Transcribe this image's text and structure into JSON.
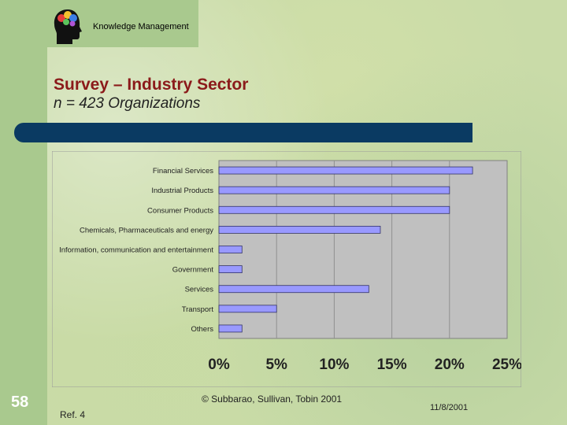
{
  "header": {
    "text": "Knowledge Management"
  },
  "slide": {
    "title": "Survey – Industry Sector",
    "subtitle": "n = 423 Organizations",
    "number": "58",
    "ref": "Ref. 4",
    "copyright": "© Subbarao, Sullivan, Tobin 2001",
    "date": "11/8/2001"
  },
  "colors": {
    "bar": "#9999ff",
    "plot_bg": "#c0c0c0",
    "title": "#8b1a1a",
    "band": "#0a3a62"
  },
  "chart_data": {
    "type": "bar",
    "orientation": "horizontal",
    "categories": [
      "Financial Services",
      "Industrial Products",
      "Consumer Products",
      "Chemicals, Pharmaceuticals and energy",
      "Information, communication and entertainment",
      "Government",
      "Services",
      "Transport",
      "Others"
    ],
    "values": [
      22.0,
      20.0,
      20.0,
      14.0,
      2.0,
      2.0,
      13.0,
      5.0,
      2.0
    ],
    "x_ticks": [
      "0%",
      "5%",
      "10%",
      "15%",
      "20%",
      "25%"
    ],
    "xlim": [
      0,
      25
    ],
    "grid": true,
    "legend": "none"
  }
}
